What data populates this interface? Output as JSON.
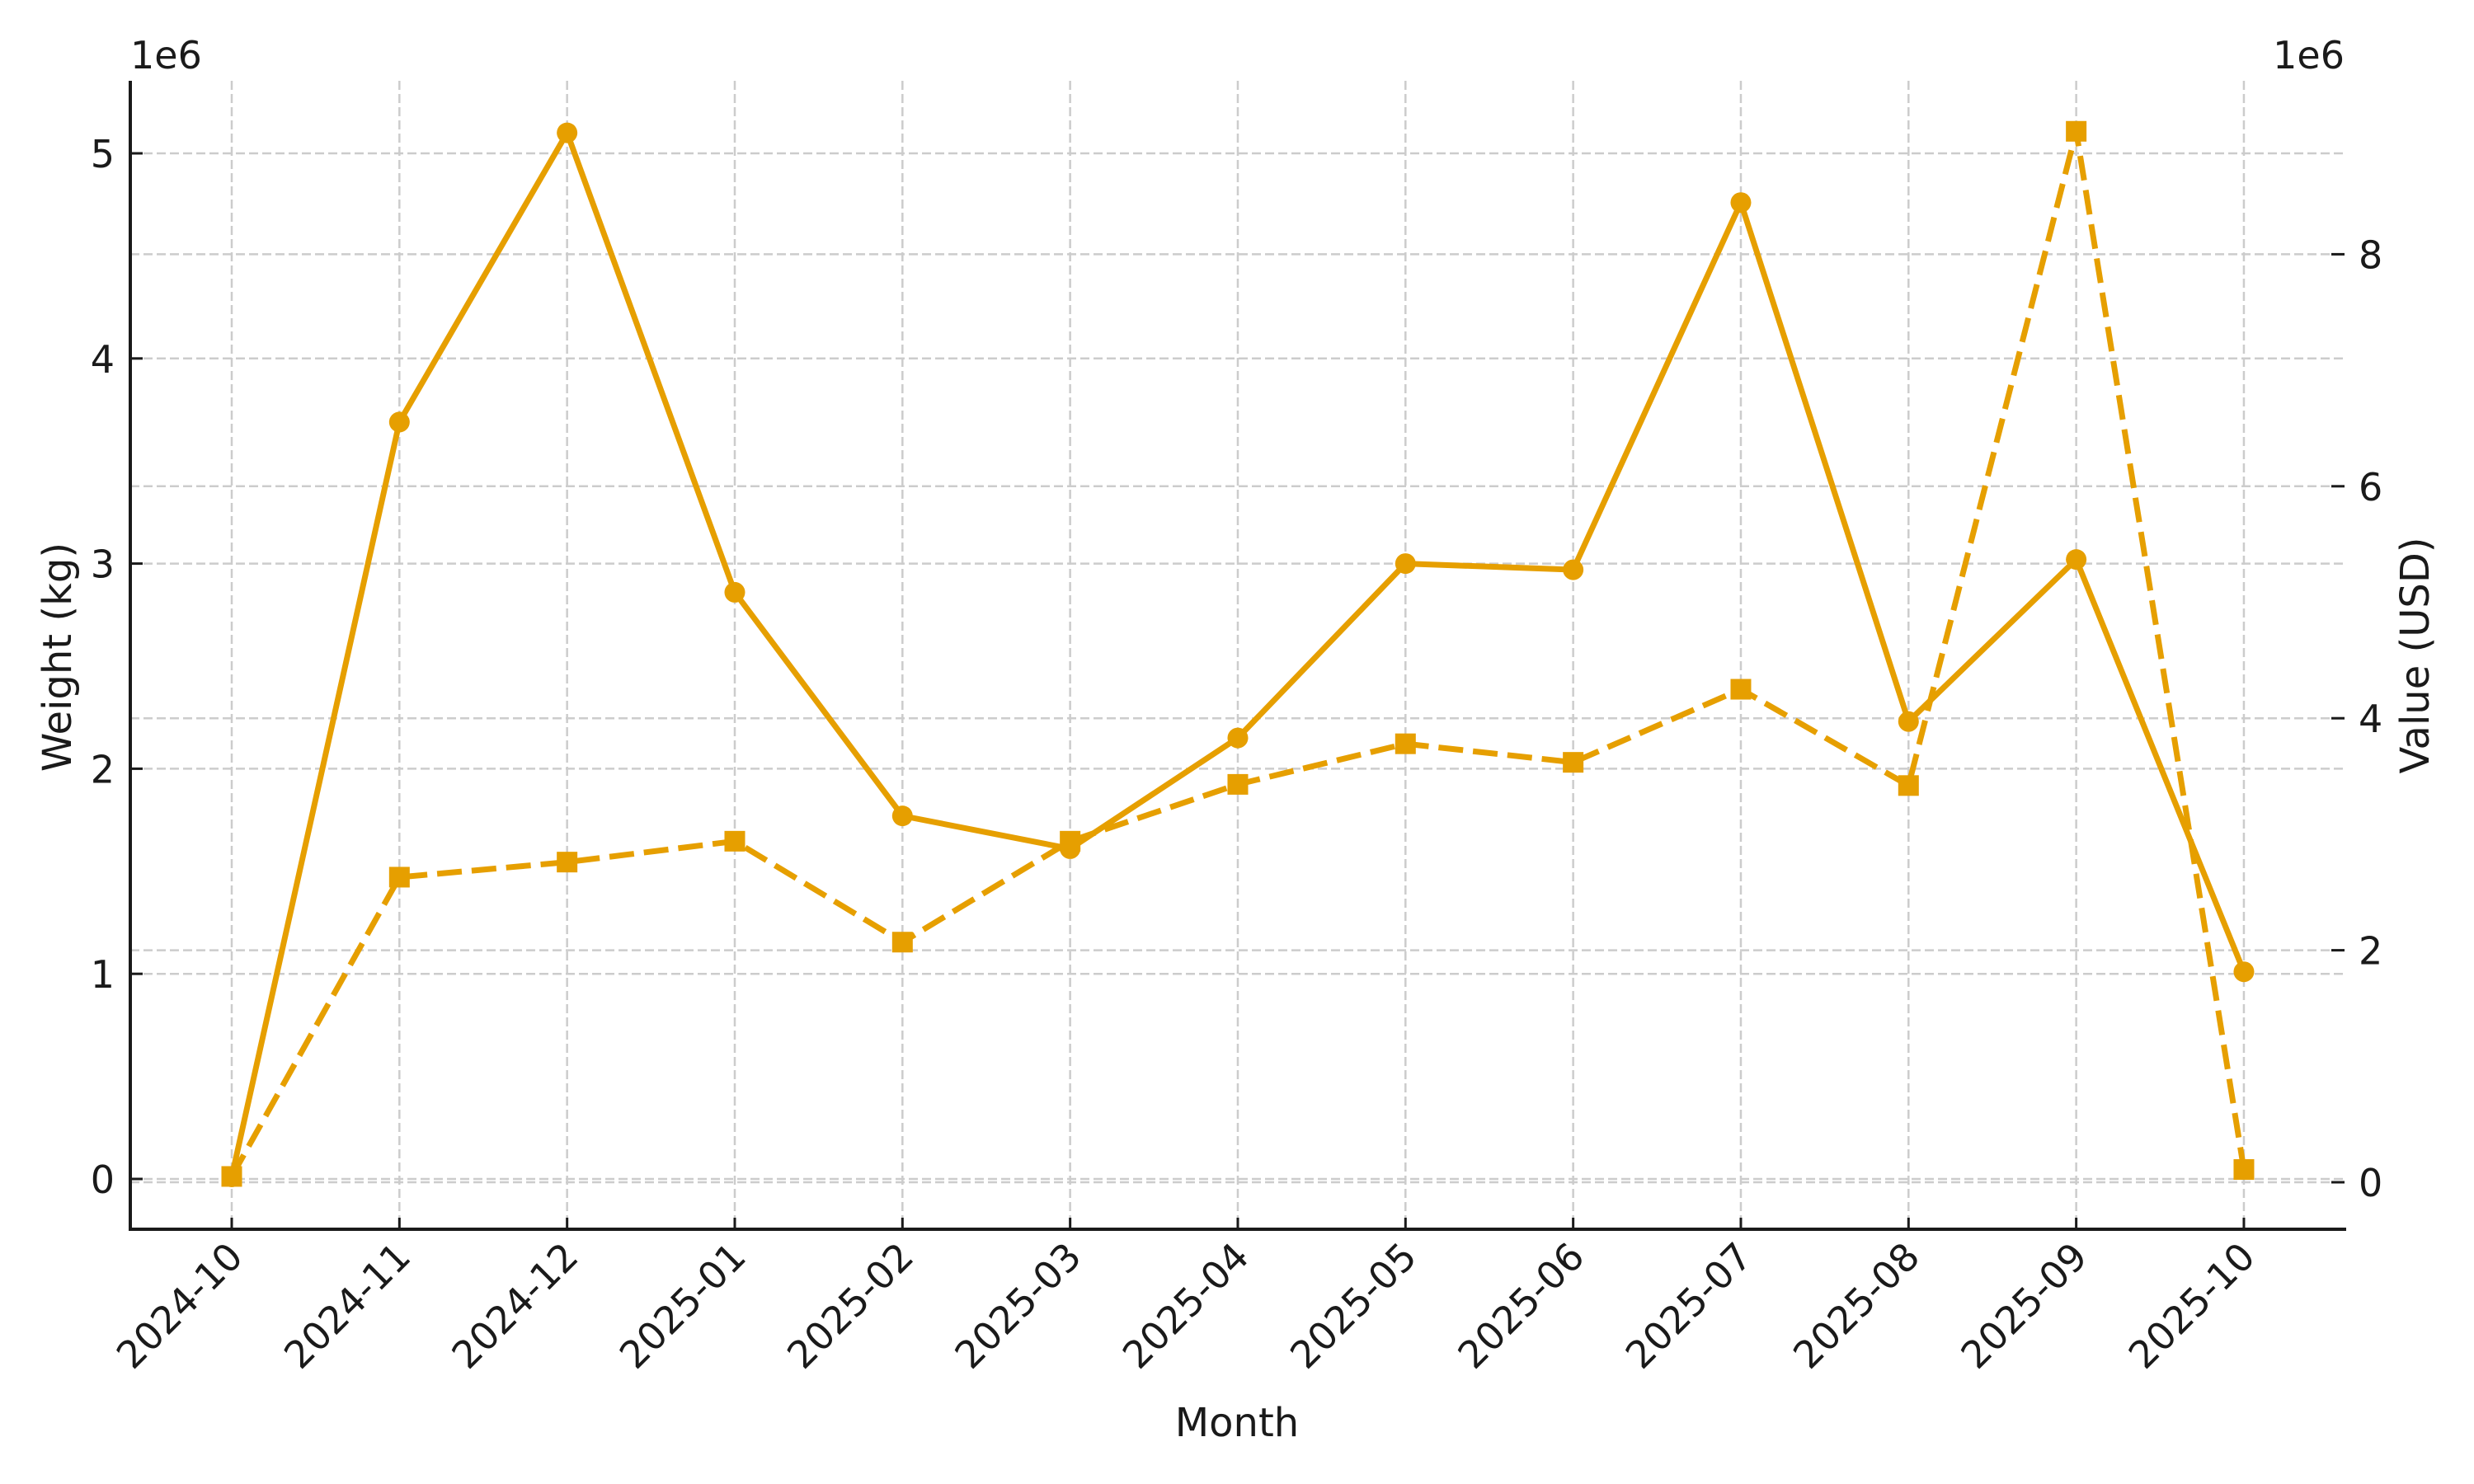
{
  "chart_data": {
    "type": "line",
    "title": "",
    "xlabel": "Month",
    "ylabel": "Weight (kg)",
    "ylabel_right": "Value (USD)",
    "y_offset_label_left": "1e6",
    "y_offset_label_right": "1e6",
    "categories": [
      "2024-10",
      "2024-11",
      "2024-12",
      "2025-01",
      "2025-02",
      "2025-03",
      "2025-04",
      "2025-05",
      "2025-06",
      "2025-07",
      "2025-08",
      "2025-09",
      "2025-10"
    ],
    "series": [
      {
        "name": "Weight (kg)",
        "axis": "left",
        "style": "solid",
        "marker": "circle",
        "color": "#E69F00",
        "values": [
          10000,
          3690000,
          5100000,
          2860000,
          1770000,
          1610000,
          2150000,
          3000000,
          2970000,
          4760000,
          2230000,
          3020000,
          1010000
        ]
      },
      {
        "name": "Value (USD)",
        "axis": "right",
        "style": "dashed",
        "marker": "square",
        "color": "#E69F00",
        "values": [
          50000,
          2630000,
          2760000,
          2940000,
          2070000,
          2940000,
          3430000,
          3780000,
          3620000,
          4250000,
          3420000,
          9060000,
          110000
        ]
      }
    ],
    "ylim_left": [
      -245000,
      5354000
    ],
    "ylim_right": [
      -405000,
      9495000
    ],
    "yticks_left": [
      0,
      1,
      2,
      3,
      4,
      5
    ],
    "yticks_right": [
      0,
      2,
      4,
      6,
      8
    ],
    "grid": true,
    "legend": null
  },
  "axes": {
    "left_ticks": [
      "0",
      "1",
      "2",
      "3",
      "4",
      "5"
    ],
    "right_ticks": [
      "0",
      "2",
      "4",
      "6",
      "8"
    ]
  }
}
